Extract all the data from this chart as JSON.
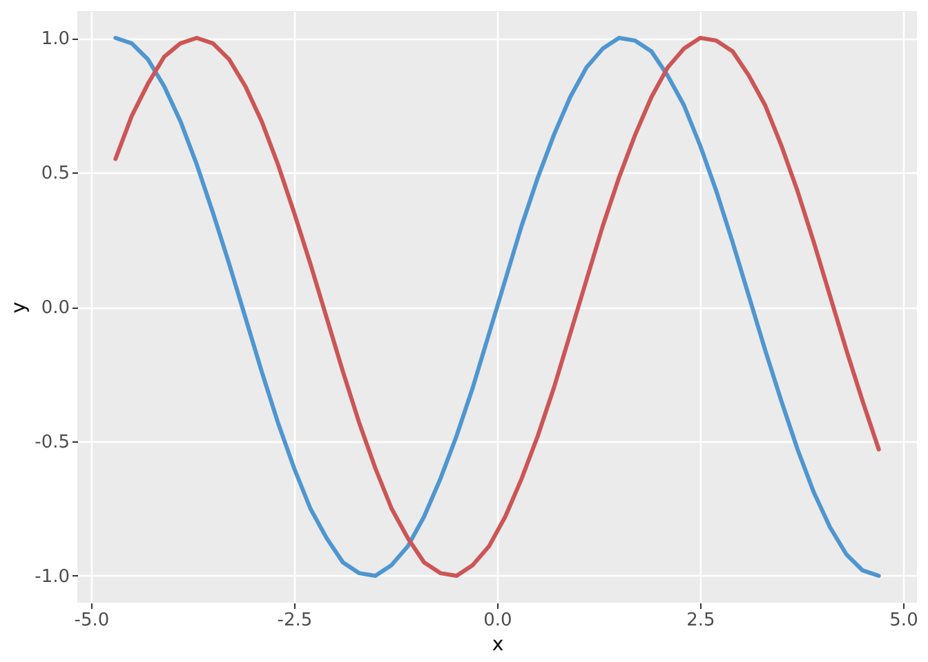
{
  "chart_data": {
    "type": "line",
    "xlabel": "x",
    "ylabel": "y",
    "x": [
      -4.7,
      -4.5,
      -4.3,
      -4.1,
      -3.9,
      -3.7,
      -3.5,
      -3.3,
      -3.1,
      -2.9,
      -2.7,
      -2.5,
      -2.3,
      -2.1,
      -1.9,
      -1.7,
      -1.5,
      -1.3,
      -1.1,
      -0.9,
      -0.7,
      -0.5,
      -0.3,
      -0.1,
      0.1,
      0.3,
      0.5,
      0.7,
      0.9,
      1.1,
      1.3,
      1.5,
      1.7,
      1.9,
      2.1,
      2.3,
      2.5,
      2.7,
      2.9,
      3.1,
      3.3,
      3.5,
      3.7,
      3.9,
      4.1,
      4.3,
      4.5,
      4.7
    ],
    "series": [
      {
        "color": "#4f96d0",
        "values": [
          1.0,
          0.98,
          0.92,
          0.82,
          0.69,
          0.53,
          0.35,
          0.16,
          -0.04,
          -0.24,
          -0.43,
          -0.6,
          -0.75,
          -0.86,
          -0.95,
          -0.99,
          -1.0,
          -0.96,
          -0.89,
          -0.78,
          -0.64,
          -0.48,
          -0.3,
          -0.1,
          0.1,
          0.3,
          0.48,
          0.64,
          0.78,
          0.89,
          0.96,
          1.0,
          0.99,
          0.95,
          0.86,
          0.75,
          0.6,
          0.43,
          0.24,
          0.04,
          -0.16,
          -0.35,
          -0.53,
          -0.69,
          -0.82,
          -0.92,
          -0.98,
          -1.0
        ]
      },
      {
        "color": "#cc5555",
        "values": [
          0.55,
          0.71,
          0.83,
          0.93,
          0.98,
          1.0,
          0.98,
          0.92,
          0.82,
          0.69,
          0.53,
          0.35,
          0.16,
          -0.04,
          -0.24,
          -0.43,
          -0.6,
          -0.75,
          -0.86,
          -0.95,
          -0.99,
          -1.0,
          -0.96,
          -0.89,
          -0.78,
          -0.64,
          -0.48,
          -0.3,
          -0.1,
          0.1,
          0.3,
          0.48,
          0.64,
          0.78,
          0.89,
          0.96,
          1.0,
          0.99,
          0.95,
          0.86,
          0.75,
          0.6,
          0.43,
          0.24,
          0.04,
          -0.16,
          -0.35,
          -0.53
        ]
      }
    ],
    "xlim": [
      -5.17,
      5.17
    ],
    "xticks": [
      {
        "value": -5,
        "label": "-5.0"
      },
      {
        "value": -2.5,
        "label": "-2.5"
      },
      {
        "value": 0,
        "label": "0.0"
      },
      {
        "value": 2.5,
        "label": "2.5"
      },
      {
        "value": 5,
        "label": "5.0"
      }
    ],
    "ylim": [
      -1.1,
      1.1
    ],
    "yticks": [
      {
        "value": -1,
        "label": "-1.0"
      },
      {
        "value": -0.5,
        "label": "-0.5"
      },
      {
        "value": 0,
        "label": "0.0"
      },
      {
        "value": 0.5,
        "label": "0.5"
      },
      {
        "value": 1,
        "label": "1.0"
      }
    ],
    "grid": true,
    "line_style": "solid"
  }
}
